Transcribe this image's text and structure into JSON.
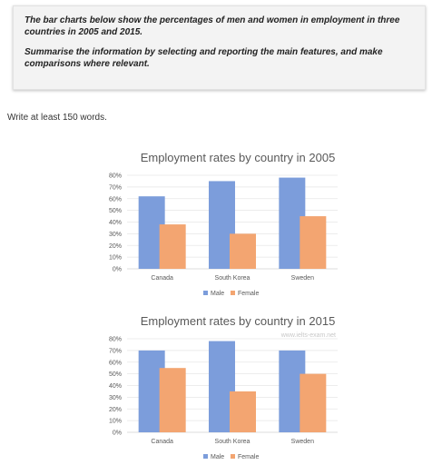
{
  "task": {
    "prompt": "The bar charts below show the percentages of men and women in employment in three countries in 2005 and 2015.",
    "instruction": "Summarise the information by selecting and reporting the main features, and make comparisons where relevant."
  },
  "word_requirement": "Write at least 150 words.",
  "colors": {
    "male": "#7c9ddb",
    "female": "#f3a571"
  },
  "chart_data": [
    {
      "type": "bar",
      "title": "Employment rates by country in 2005",
      "categories": [
        "Canada",
        "South Korea",
        "Sweden"
      ],
      "series": [
        {
          "name": "Male",
          "values": [
            62,
            75,
            78
          ]
        },
        {
          "name": "Female",
          "values": [
            38,
            30,
            45
          ]
        }
      ],
      "ylim": [
        0,
        80
      ],
      "yticks": [
        "0%",
        "10%",
        "20%",
        "30%",
        "40%",
        "50%",
        "60%",
        "70%",
        "80%"
      ],
      "grid": true,
      "legend": "bottom"
    },
    {
      "type": "bar",
      "title": "Employment rates by country in 2015",
      "watermark": "www.ielts-exam.net",
      "categories": [
        "Canada",
        "South Korea",
        "Sweden"
      ],
      "series": [
        {
          "name": "Male",
          "values": [
            70,
            78,
            70
          ]
        },
        {
          "name": "Female",
          "values": [
            55,
            35,
            50
          ]
        }
      ],
      "ylim": [
        0,
        80
      ],
      "yticks": [
        "0%",
        "10%",
        "20%",
        "30%",
        "40%",
        "50%",
        "60%",
        "70%",
        "80%"
      ],
      "grid": true,
      "legend": "bottom"
    }
  ]
}
